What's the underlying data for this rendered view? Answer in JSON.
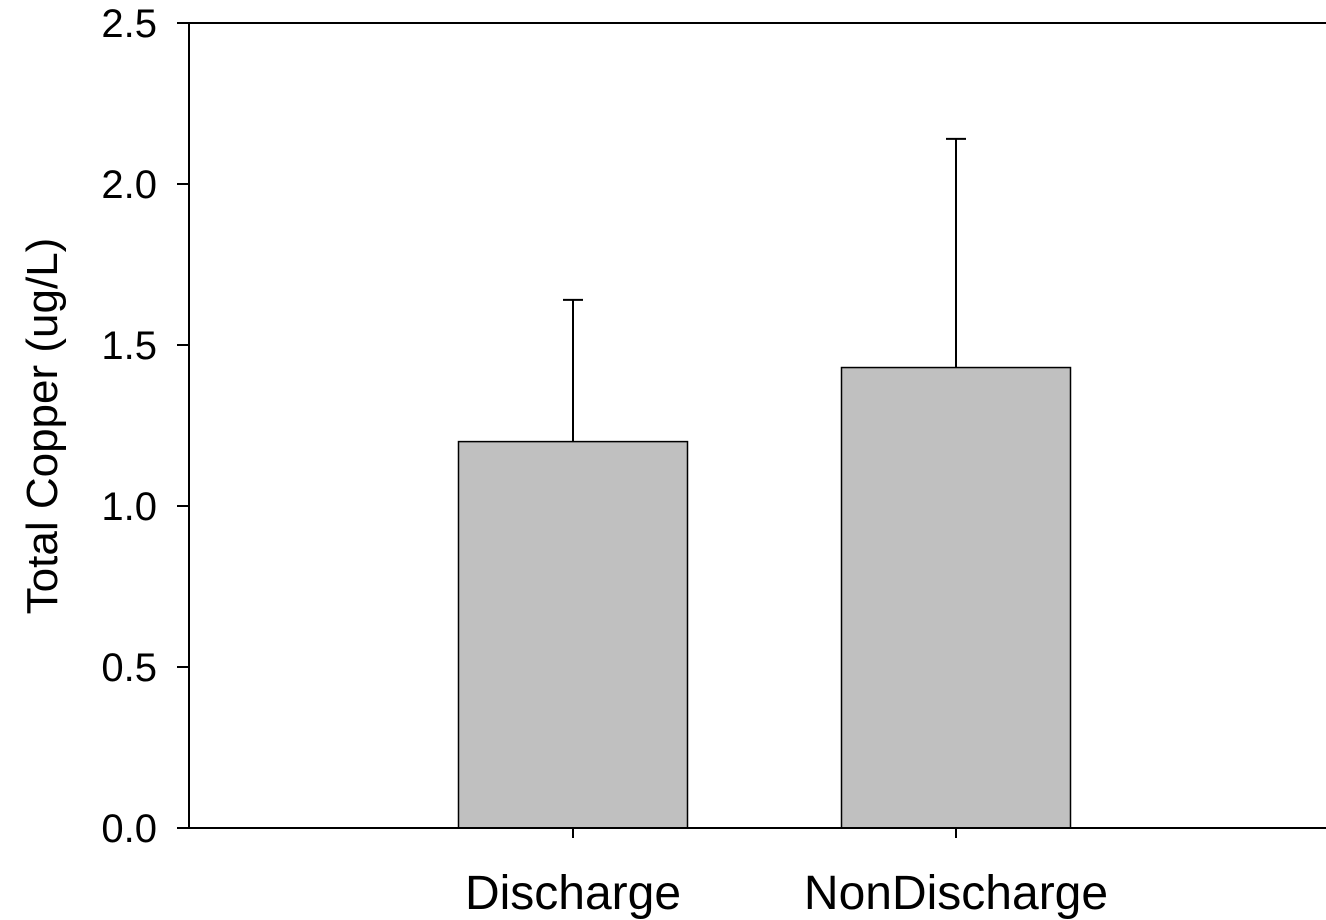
{
  "chart_data": {
    "type": "bar",
    "title": "",
    "xlabel": "",
    "ylabel": "Total Copper (ug/L)",
    "categories": [
      "Discharge",
      "NonDischarge"
    ],
    "values": [
      1.2,
      1.43
    ],
    "error_upper": [
      1.64,
      2.14
    ],
    "ylim": [
      0,
      2.5
    ],
    "yticks": [
      "0.0",
      "0.5",
      "1.0",
      "1.5",
      "2.0",
      "2.5"
    ],
    "grid": false,
    "legend": "none",
    "bar_color": "#c0c0c0",
    "edge_color": "#000000"
  }
}
